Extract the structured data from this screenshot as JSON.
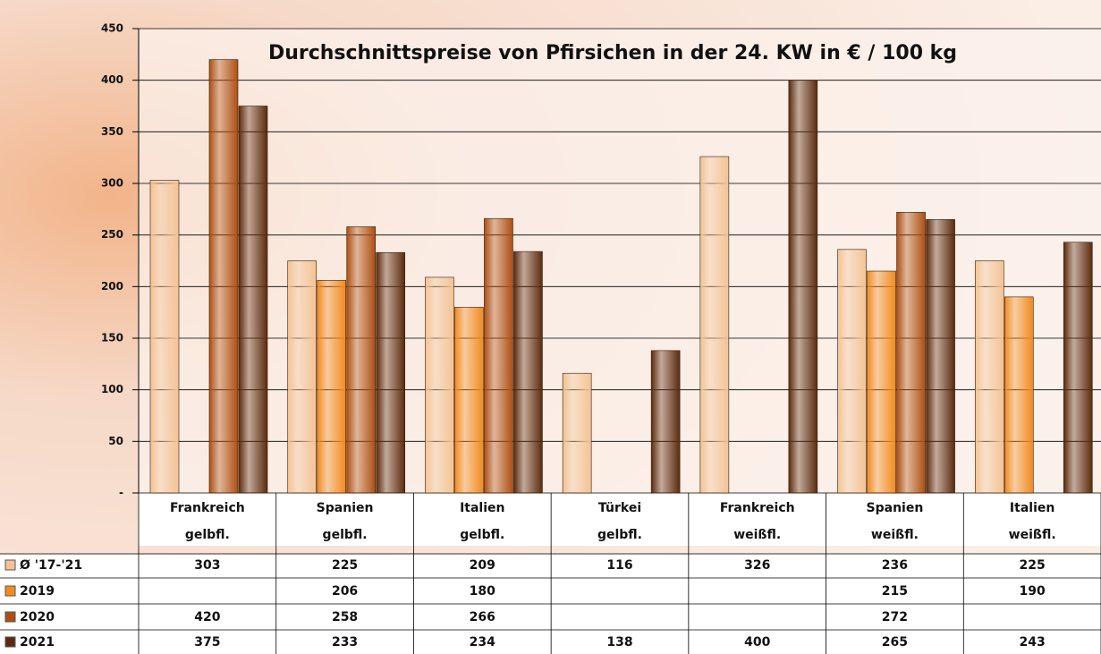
{
  "chart_data": {
    "type": "bar",
    "title": "Durchschnittspreise von Pfirsichen in der 24. KW in € / 100 kg",
    "categories": [
      [
        "Frankreich",
        "gelbfl."
      ],
      [
        "Spanien",
        "gelbfl."
      ],
      [
        "Italien",
        "gelbfl."
      ],
      [
        "Türkei",
        "gelbfl."
      ],
      [
        "Frankreich",
        "weißfl."
      ],
      [
        "Spanien",
        "weißfl."
      ],
      [
        "Italien",
        "weißfl."
      ]
    ],
    "series": [
      {
        "name": "Ø '17-'21",
        "color": "#f3c394",
        "values": [
          303,
          225,
          209,
          116,
          326,
          236,
          225
        ]
      },
      {
        "name": "2019",
        "color": "#f28a1e",
        "values": [
          null,
          206,
          180,
          null,
          null,
          215,
          190
        ]
      },
      {
        "name": "2020",
        "color": "#ad4f12",
        "values": [
          420,
          258,
          266,
          null,
          null,
          272,
          null
        ]
      },
      {
        "name": "2021",
        "color": "#5a2a0d",
        "values": [
          375,
          233,
          234,
          138,
          400,
          265,
          243
        ]
      }
    ],
    "ylim": [
      0,
      450
    ],
    "yticks": [
      {
        "value": 0,
        "label": "-"
      },
      50,
      100,
      150,
      200,
      250,
      300,
      350,
      400,
      450
    ],
    "grid": true
  }
}
